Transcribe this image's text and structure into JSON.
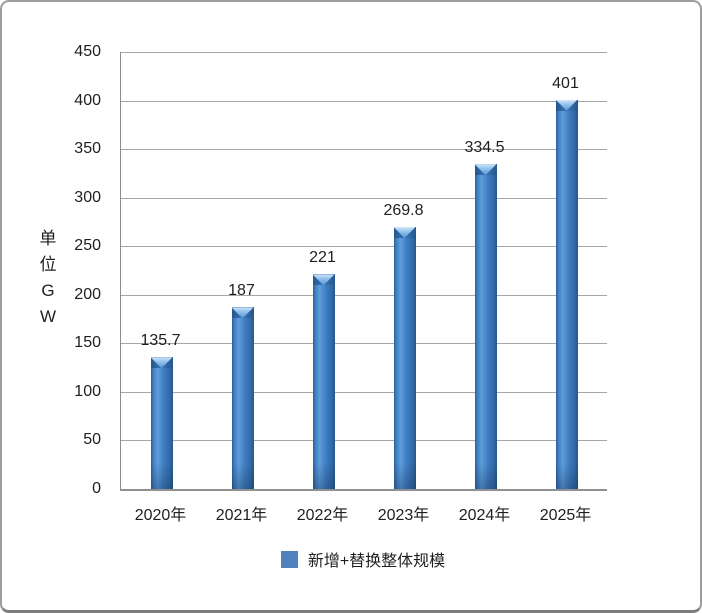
{
  "chart_data": {
    "type": "bar",
    "title": "",
    "categories": [
      "2020年",
      "2021年",
      "2022年",
      "2023年",
      "2024年",
      "2025年"
    ],
    "values": [
      135.7,
      187,
      221,
      269.8,
      334.5,
      401
    ],
    "data_labels": [
      "135.7",
      "187",
      "221",
      "269.8",
      "334.5",
      "401"
    ],
    "ylabel": "单位GW",
    "ylabel_chars": [
      "单",
      "位",
      "G",
      "W"
    ],
    "ylim": [
      0,
      450
    ],
    "yticks": [
      0,
      50,
      100,
      150,
      200,
      250,
      300,
      350,
      400,
      450
    ],
    "grid": true,
    "legend": "新增+替换整体规模",
    "legend_position": "bottom",
    "colors": {
      "bar_main": "#3f7ec3",
      "bar_light": "#5f9dda",
      "bar_dark": "#27568c",
      "bar_top_highlight": "#d4e9fa",
      "legend_swatch": "#4f81bd",
      "gridline": "#a6a6a6",
      "axis": "#8c8c8c",
      "text": "#1f1f1f"
    }
  }
}
